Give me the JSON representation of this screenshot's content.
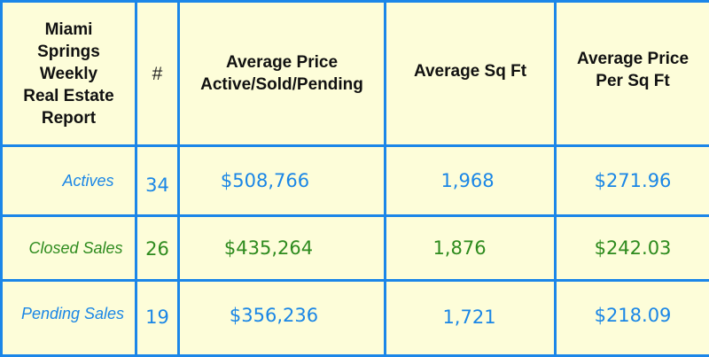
{
  "header": {
    "title": [
      "Miami",
      "Springs",
      "Weekly",
      "Real Estate",
      "Report"
    ],
    "count": "#",
    "avg_price": [
      "Average Price",
      "Active/Sold/Pending"
    ],
    "avg_sqft": "Average Sq Ft",
    "avg_price_sqft": [
      "Average Price",
      "Per Sq Ft"
    ]
  },
  "rows": [
    {
      "label": "Actives",
      "count": "34",
      "avg_price": "$508,766",
      "avg_sqft": "1,968",
      "price_per_sqft": "$271.96",
      "color": "#1a86e6"
    },
    {
      "label": "Closed Sales",
      "count": "26",
      "avg_price": "$435,264",
      "avg_sqft": "1,876",
      "price_per_sqft": "$242.03",
      "color": "#2e8b1e"
    },
    {
      "label": "Pending Sales",
      "count": "19",
      "avg_price": "$356,236",
      "avg_sqft": "1,721",
      "price_per_sqft": "$218.09",
      "color": "#1a86e6"
    }
  ],
  "colors": {
    "border": "#1b86e8",
    "background": "#fdfdd9"
  }
}
